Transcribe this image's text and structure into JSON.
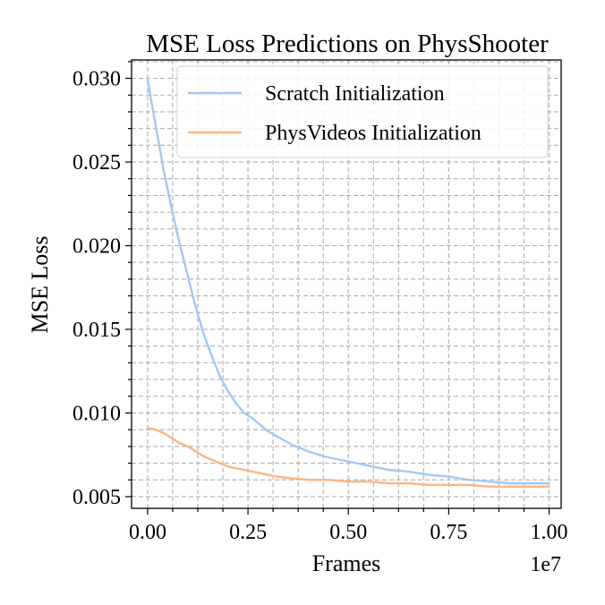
{
  "chart_data": {
    "type": "line",
    "title": "MSE Loss Predictions on PhysShooter",
    "xlabel": "Frames",
    "ylabel": "MSE Loss",
    "x_offset_label": "1e7",
    "xlim": [
      -0.04,
      1.03
    ],
    "ylim": [
      0.0043,
      0.0311
    ],
    "x_tick_values": [
      0.0,
      0.25,
      0.5,
      0.75,
      1.0
    ],
    "x_tick_labels": [
      "0.00",
      "0.25",
      "0.50",
      "0.75",
      "1.00"
    ],
    "y_tick_values": [
      0.005,
      0.01,
      0.015,
      0.02,
      0.025,
      0.03
    ],
    "y_tick_labels": [
      "0.005",
      "0.010",
      "0.015",
      "0.020",
      "0.025",
      "0.030"
    ],
    "x_minor_ticks": [
      0.0625,
      0.125,
      0.1875,
      0.3125,
      0.375,
      0.4375,
      0.5625,
      0.625,
      0.6875,
      0.8125,
      0.875,
      0.9375
    ],
    "y_minor_ticks": [
      0.006,
      0.007,
      0.008,
      0.009,
      0.011,
      0.012,
      0.013,
      0.014,
      0.016,
      0.017,
      0.018,
      0.019,
      0.021,
      0.022,
      0.023,
      0.024,
      0.026,
      0.027,
      0.028,
      0.029,
      0.031
    ],
    "grid": true,
    "legend_position": "top-right",
    "series": [
      {
        "name": "Scratch Initialization",
        "color": "#a1c9f4",
        "x": [
          0.0,
          0.02,
          0.04,
          0.06,
          0.08,
          0.1,
          0.12,
          0.14,
          0.16,
          0.18,
          0.2,
          0.22,
          0.24,
          0.26,
          0.28,
          0.3,
          0.33,
          0.36,
          0.4,
          0.44,
          0.48,
          0.52,
          0.56,
          0.6,
          0.65,
          0.7,
          0.75,
          0.8,
          0.85,
          0.9,
          0.95,
          1.0
        ],
        "y": [
          0.0299,
          0.0272,
          0.0245,
          0.0222,
          0.0201,
          0.0182,
          0.0163,
          0.0147,
          0.0134,
          0.0122,
          0.0113,
          0.0106,
          0.01,
          0.0097,
          0.0093,
          0.0089,
          0.0085,
          0.0081,
          0.0077,
          0.0074,
          0.0072,
          0.007,
          0.0068,
          0.0066,
          0.0065,
          0.0063,
          0.0062,
          0.006,
          0.0059,
          0.0058,
          0.0058,
          0.0058
        ]
      },
      {
        "name": "PhysVideos Initialization",
        "color": "#ffb482",
        "x": [
          0.0,
          0.02,
          0.04,
          0.06,
          0.08,
          0.1,
          0.12,
          0.14,
          0.16,
          0.18,
          0.2,
          0.24,
          0.28,
          0.32,
          0.36,
          0.4,
          0.45,
          0.5,
          0.55,
          0.6,
          0.65,
          0.7,
          0.75,
          0.8,
          0.85,
          0.9,
          0.95,
          1.0
        ],
        "y": [
          0.0091,
          0.009,
          0.0088,
          0.0085,
          0.0082,
          0.008,
          0.0077,
          0.0074,
          0.0072,
          0.007,
          0.0068,
          0.0066,
          0.0064,
          0.0062,
          0.0061,
          0.006,
          0.006,
          0.0059,
          0.0059,
          0.0058,
          0.0058,
          0.0057,
          0.0057,
          0.0057,
          0.0056,
          0.0056,
          0.0056,
          0.0056
        ]
      }
    ]
  }
}
